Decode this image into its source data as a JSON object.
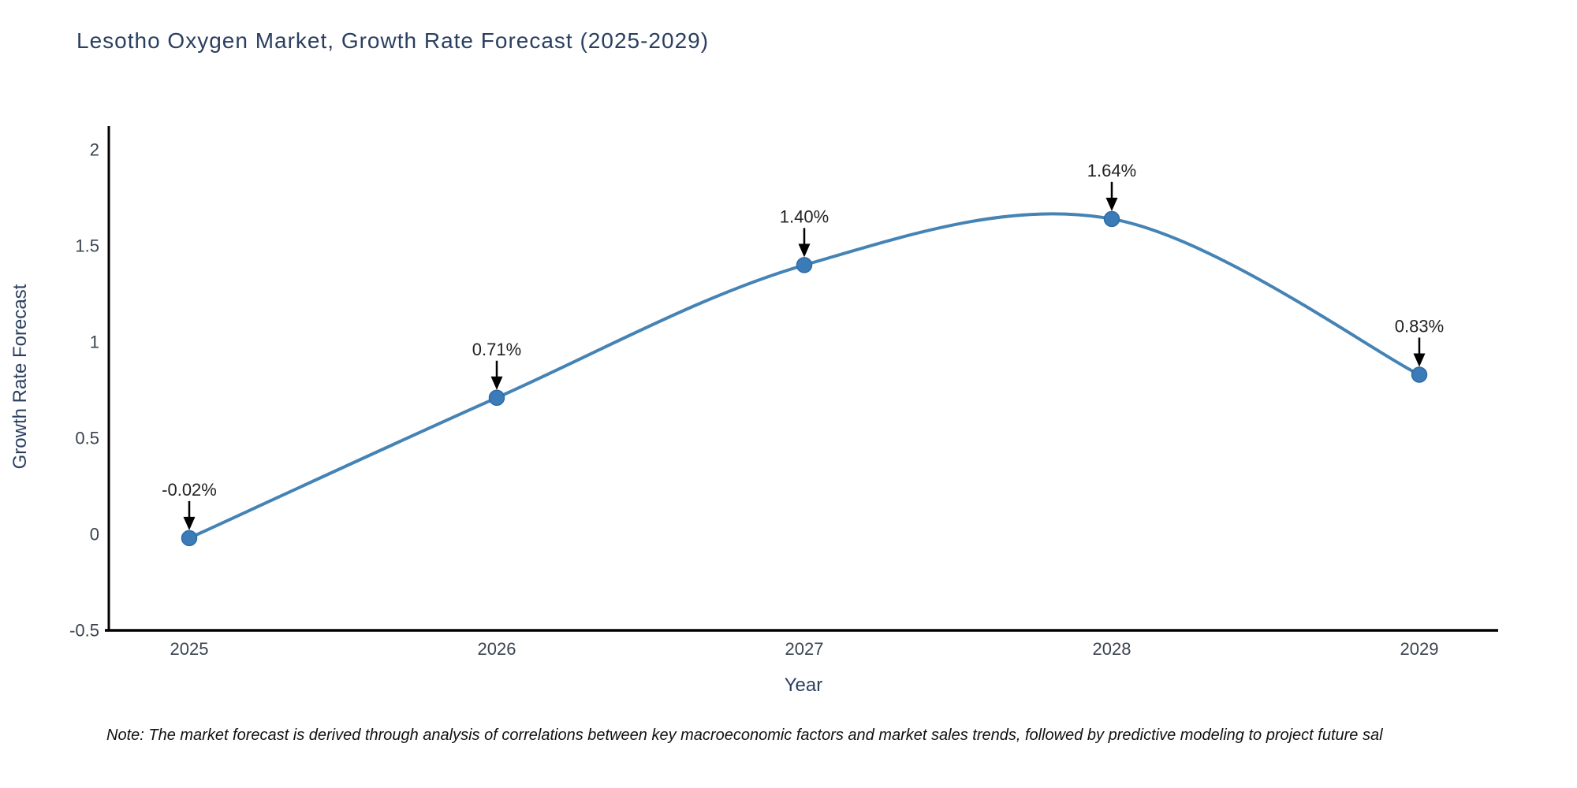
{
  "note": {
    "text": "Note: The market forecast is derived through analysis of correlations between key macroeconomic factors and market sales trends, followed by predictive modeling to project future sal"
  },
  "chart_data": {
    "type": "line",
    "title": "Lesotho Oxygen Market, Growth Rate Forecast (2025-2029)",
    "xlabel": "Year",
    "ylabel": "Growth Rate Forecast",
    "categories": [
      "2025",
      "2026",
      "2027",
      "2028",
      "2029"
    ],
    "series": [
      {
        "name": "Growth Rate Forecast",
        "values": [
          -0.02,
          0.71,
          1.4,
          1.64,
          0.83
        ],
        "point_labels": [
          "-0.02%",
          "0.71%",
          "1.40%",
          "1.64%",
          "0.83%"
        ]
      }
    ],
    "yticks": [
      2,
      1.5,
      1,
      0.5,
      0,
      -0.5
    ],
    "ylim": [
      -0.5,
      2.13
    ],
    "grid": false,
    "legend": "none",
    "line_shape": "spline",
    "markers": true,
    "annotations": "value labels with black down arrows above each point",
    "colors": {
      "line": "#4583b5",
      "marker": "#3b7cb8",
      "marker_edge": "#2f6ba6",
      "axis": "#000000",
      "tick_text": "#3a4350",
      "title_text": "#2a3f5f",
      "annotation_text": "#222222",
      "arrow": "#000000",
      "background": "#ffffff"
    }
  }
}
